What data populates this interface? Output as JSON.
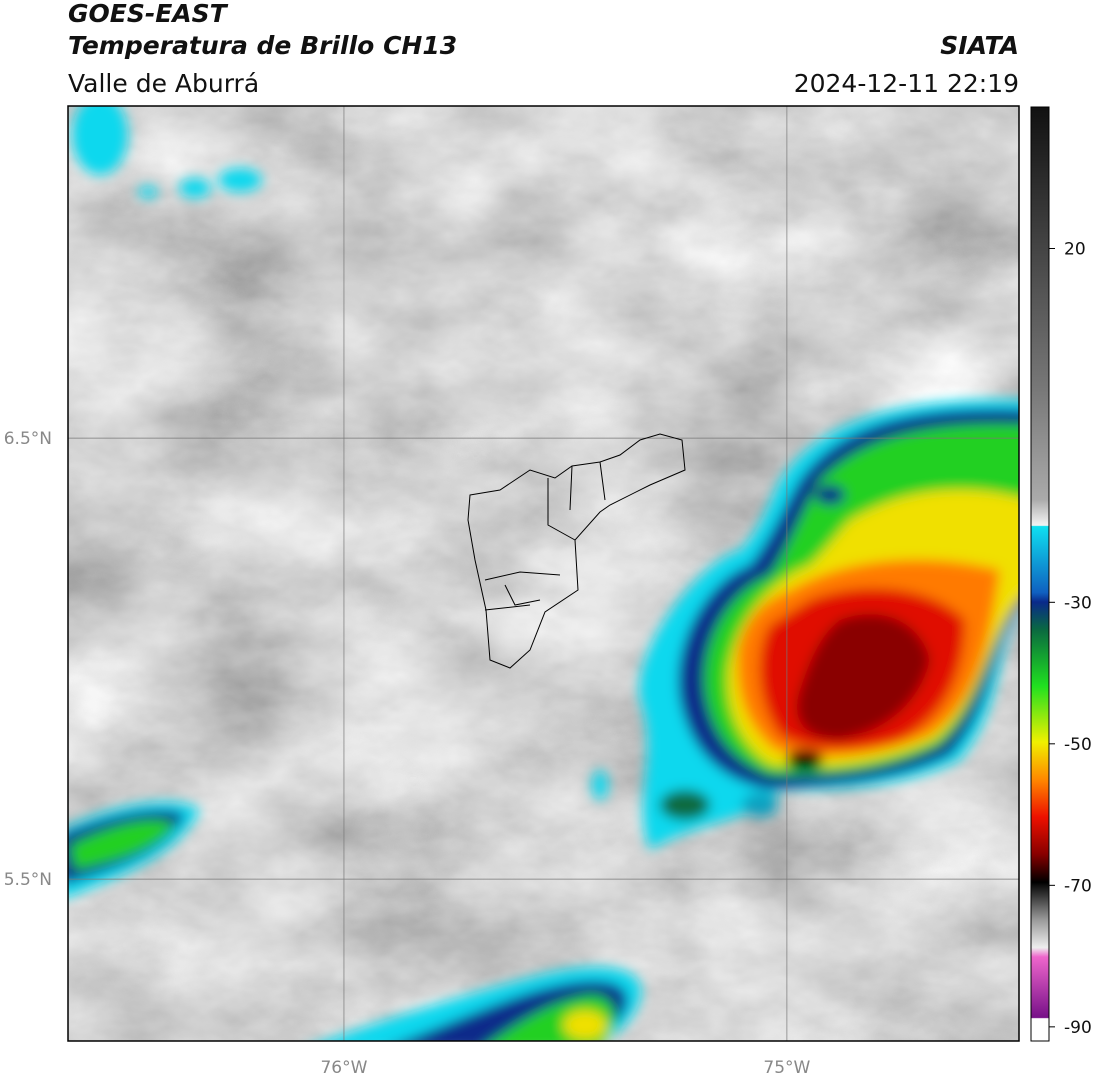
{
  "header": {
    "satellite": "GOES-EAST",
    "product": "Temperatura de Brillo CH13",
    "region": "Valle de Aburrá",
    "agency": "SIATA",
    "datetime": "2024-12-11 22:19"
  },
  "map": {
    "xlim": [
      -76.623,
      -74.476
    ],
    "ylim": [
      5.133,
      7.253
    ],
    "xticks": [
      {
        "value": -76,
        "label": "76°W"
      },
      {
        "value": -75,
        "label": "75°W"
      }
    ],
    "yticks": [
      {
        "value": 6.5,
        "label": "6.5°N"
      },
      {
        "value": 5.5,
        "label": "5.5°N"
      }
    ],
    "grid": true
  },
  "colorbar": {
    "lim": [
      -92,
      40
    ],
    "ticks": [
      20,
      -30,
      -50,
      -70,
      -90
    ]
  }
}
